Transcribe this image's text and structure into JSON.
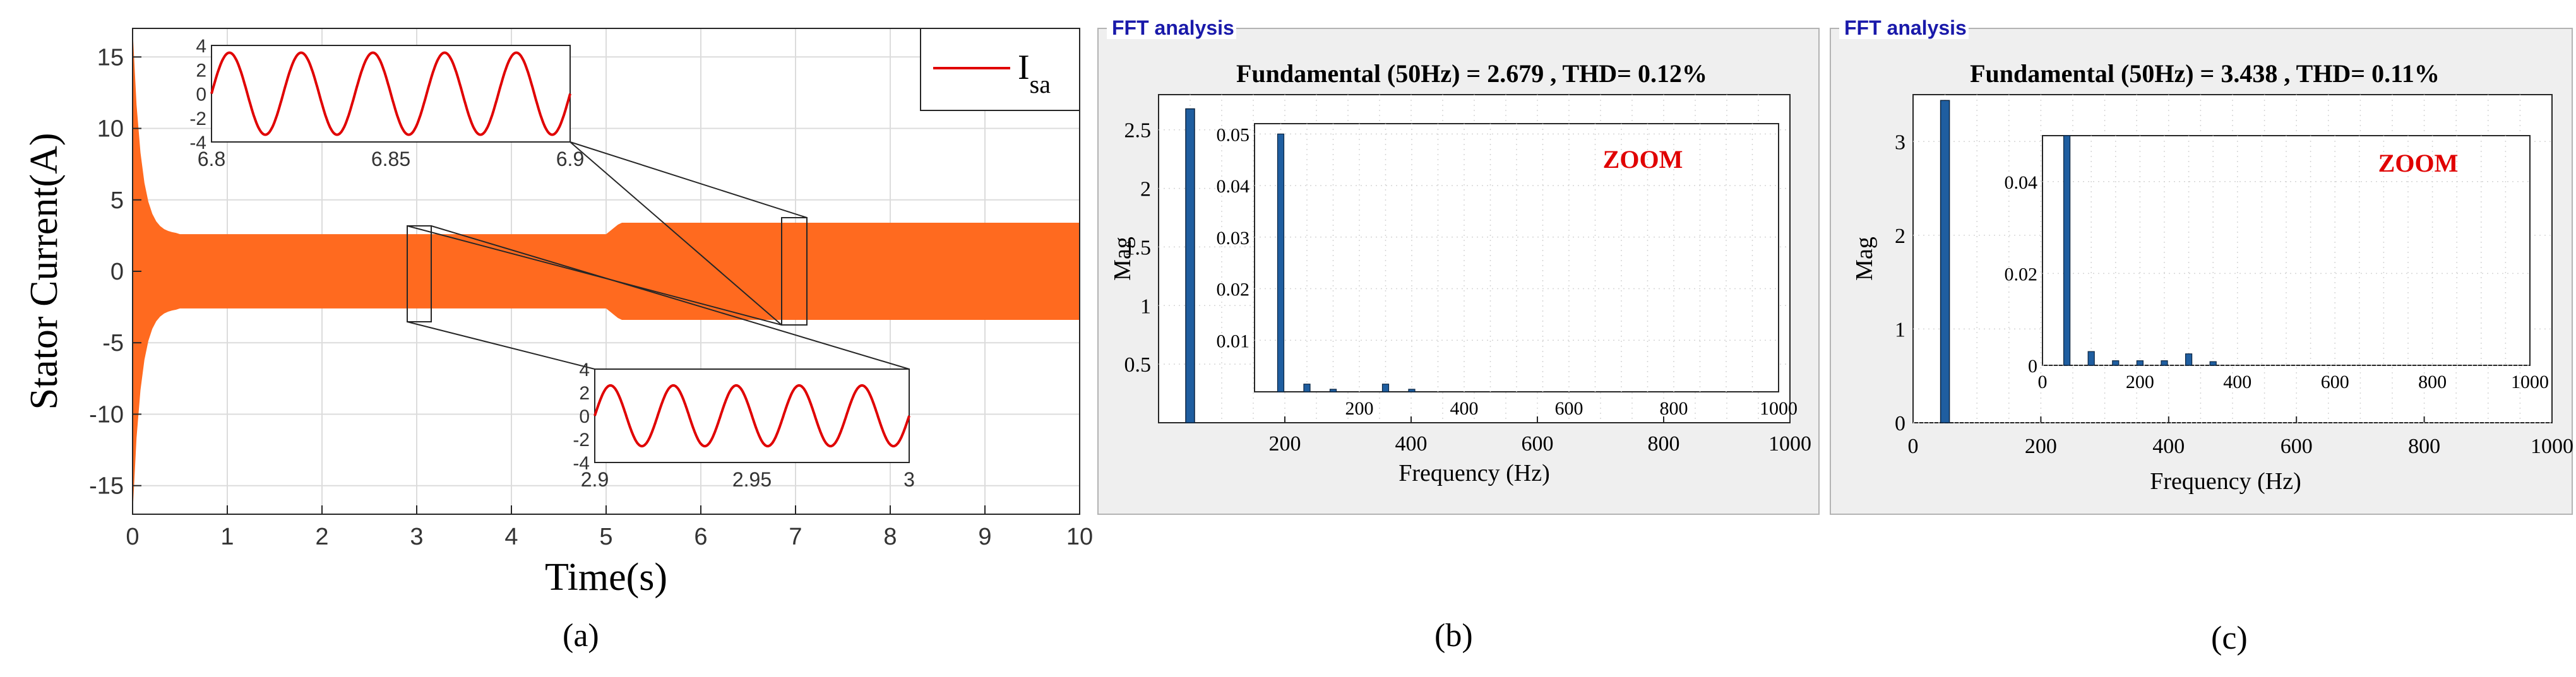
{
  "chart_data": [
    {
      "id": "a",
      "type": "line",
      "caption": "(a)",
      "xlabel": "Time(s)",
      "ylabel": "Stator Current(A)",
      "xlim": [
        0,
        10
      ],
      "ylim": [
        -17,
        17
      ],
      "xticks": [
        "0",
        "1",
        "2",
        "3",
        "4",
        "5",
        "6",
        "7",
        "8",
        "9",
        "10"
      ],
      "yticks": [
        "15",
        "10",
        "5",
        "0",
        "-5",
        "-10",
        "-15"
      ],
      "grid": true,
      "series": [
        {
          "name": "I_sa",
          "color": "#FF6A1F",
          "envelope": {
            "start_peak": 17,
            "settle_time_s": 0.5,
            "peak_before_5s": 2.6,
            "peak_after_5s": 3.4,
            "transition_s": [
              5.0,
              5.15
            ]
          }
        }
      ],
      "legend": {
        "label_main": "I",
        "label_sub": "sa",
        "line_color": "#E00000",
        "placement": "top-right"
      },
      "insets": [
        {
          "id": "inset1",
          "xlim": [
            6.8,
            6.9
          ],
          "ylim": [
            -4,
            4
          ],
          "xticks": [
            "6.8",
            "6.85",
            "6.9"
          ],
          "yticks": [
            "4",
            "2",
            "0",
            "-2",
            "-4"
          ],
          "amplitude": 3.4,
          "freq_hz": 50,
          "color": "#E00000"
        },
        {
          "id": "inset2",
          "xlim": [
            2.9,
            3.0
          ],
          "ylim": [
            -4,
            4
          ],
          "xticks": [
            "2.9",
            "2.95",
            "3"
          ],
          "yticks": [
            "4",
            "2",
            "0",
            "-2",
            "-4"
          ],
          "amplitude": 2.6,
          "freq_hz": 50,
          "color": "#E00000"
        }
      ]
    },
    {
      "id": "b",
      "type": "bar",
      "caption": "(b)",
      "panel_title": "FFT analysis",
      "title": "Fundamental (50Hz) = 2.679 , THD= 0.12%",
      "xlabel": "Frequency (Hz)",
      "ylabel": "Mag",
      "xlim": [
        0,
        1000
      ],
      "ylim": [
        0,
        2.8
      ],
      "xticks": [
        "200",
        "400",
        "600",
        "800",
        "1000"
      ],
      "yticks": [
        "2.5",
        "2",
        "1.5",
        "1",
        "0.5"
      ],
      "bars": [
        {
          "freq": 50,
          "value": 2.679
        }
      ],
      "zoom": {
        "label": "ZOOM",
        "xlim": [
          0,
          1000
        ],
        "ylim": [
          0,
          0.052
        ],
        "xticks": [
          "200",
          "400",
          "600",
          "800",
          "1000"
        ],
        "yticks": [
          "0.05",
          "0.04",
          "0.03",
          "0.02",
          "0.01"
        ],
        "bars": [
          {
            "freq": 50,
            "value": 0.05
          },
          {
            "freq": 100,
            "value": 0.0015
          },
          {
            "freq": 150,
            "value": 0.0005
          },
          {
            "freq": 250,
            "value": 0.0015
          },
          {
            "freq": 300,
            "value": 0.0005
          }
        ]
      }
    },
    {
      "id": "c",
      "type": "bar",
      "caption": "(c)",
      "panel_title": "FFT analysis",
      "title": "Fundamental (50Hz) = 3.438 , THD= 0.11%",
      "xlabel": "Frequency (Hz)",
      "ylabel": "Mag",
      "xlim": [
        0,
        1000
      ],
      "ylim": [
        0,
        3.5
      ],
      "xticks": [
        "0",
        "200",
        "400",
        "600",
        "800",
        "1000"
      ],
      "yticks": [
        "3",
        "2",
        "1",
        "0"
      ],
      "bars": [
        {
          "freq": 50,
          "value": 3.438
        }
      ],
      "zoom": {
        "label": "ZOOM",
        "xlim": [
          0,
          1000
        ],
        "ylim": [
          0,
          0.05
        ],
        "xticks": [
          "0",
          "200",
          "400",
          "600",
          "800",
          "1000"
        ],
        "yticks": [
          "0.04",
          "0.02",
          "0"
        ],
        "bars": [
          {
            "freq": 50,
            "value": 0.05
          },
          {
            "freq": 100,
            "value": 0.003
          },
          {
            "freq": 150,
            "value": 0.001
          },
          {
            "freq": 200,
            "value": 0.001
          },
          {
            "freq": 250,
            "value": 0.001
          },
          {
            "freq": 300,
            "value": 0.0025
          },
          {
            "freq": 350,
            "value": 0.0008
          }
        ]
      }
    }
  ]
}
